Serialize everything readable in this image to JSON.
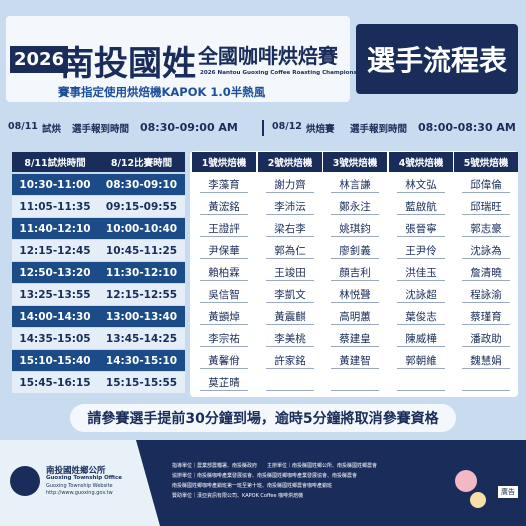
{
  "header": {
    "year": "2026",
    "title": "南投國姓",
    "event": "全國咖啡烘焙賽",
    "event_en": "2026 Nantou Guoxing Coffee Roasting Championship",
    "badge": "選手流程表",
    "subtitle": "賽事指定使用烘焙機KAPOK 1.0半熱風"
  },
  "checkin": [
    {
      "date": "08/11",
      "session": "試烘",
      "label": "選手報到時間",
      "time": "08:30-09:00 AM"
    },
    {
      "date": "08/12",
      "session": "烘焙賽",
      "label": "選手報到時間",
      "time": "08:00-08:30 AM"
    }
  ],
  "table": {
    "columns": [
      "8/11試烘時間",
      "8/12比賽時間",
      "1號烘焙機",
      "2號烘焙機",
      "3號烘焙機",
      "4號烘焙機",
      "5號烘焙機"
    ],
    "rows": [
      [
        "10:30-11:00",
        "08:30-09:10",
        "李藻育",
        "謝力齊",
        "林言謙",
        "林文弘",
        "邱偉倫"
      ],
      [
        "11:05-11:35",
        "09:15-09:55",
        "黃浤銘",
        "李沛沄",
        "鄭永注",
        "藍啟航",
        "邱瑞旺"
      ],
      [
        "11:40-12:10",
        "10:00-10:40",
        "王證評",
        "梁右李",
        "姚琪鈞",
        "張晉寧",
        "郭志豪"
      ],
      [
        "12:15-12:45",
        "10:45-11:25",
        "尹保華",
        "郭為仁",
        "廖釗義",
        "王尹伶",
        "沈詠為"
      ],
      [
        "12:50-13:20",
        "11:30-12:10",
        "賴柏霖",
        "王竣田",
        "顏吉利",
        "洪佳玉",
        "詹清曉"
      ],
      [
        "13:25-13:55",
        "12:15-12:55",
        "吳信智",
        "李凱文",
        "林悦聲",
        "沈詠超",
        "程詠渝"
      ],
      [
        "14:00-14:30",
        "13:00-13:40",
        "黃顗焯",
        "黃震麒",
        "高明蕙",
        "葉俊志",
        "蔡瑾育"
      ],
      [
        "14:35-15:05",
        "13:45-14:25",
        "李宗祐",
        "李美桃",
        "蔡建皇",
        "陳威樺",
        "潘政助"
      ],
      [
        "15:10-15:40",
        "14:30-15:10",
        "黃馨佾",
        "許家銘",
        "黃建智",
        "郭朝維",
        "魏慧娟"
      ],
      [
        "15:45-16:15",
        "15:15-15:55",
        "莫芷晴"
      ]
    ]
  },
  "notice": "請參賽選手提前30分鐘到場，逾時5分鐘將取消參賽資格",
  "footer": {
    "org": "南投國姓鄉公所",
    "org_en": "Guoxing Township Office",
    "site_label": "Guoxing Township Website",
    "url": "http://www.guoxing.gov.tw",
    "credits": [
      "指導單位｜農業部農糧署、南投縣政府　　主辦單位｜南投縣國姓鄉公所、南投縣國姓鄉農會",
      "協辦單位｜南投縣咖啡產業發展協會、南投縣國姓鄉咖啡產業發展協會、南投縣農會",
      "南投縣國姓鄉咖啡產銷班第一班至第十班、南投縣國姓鄉農會咖啡產銷班",
      "贊助單位｜漢亞資訊有限公司、KAPOK Coffee 咖啡烘焙機"
    ],
    "ad": "廣告"
  }
}
